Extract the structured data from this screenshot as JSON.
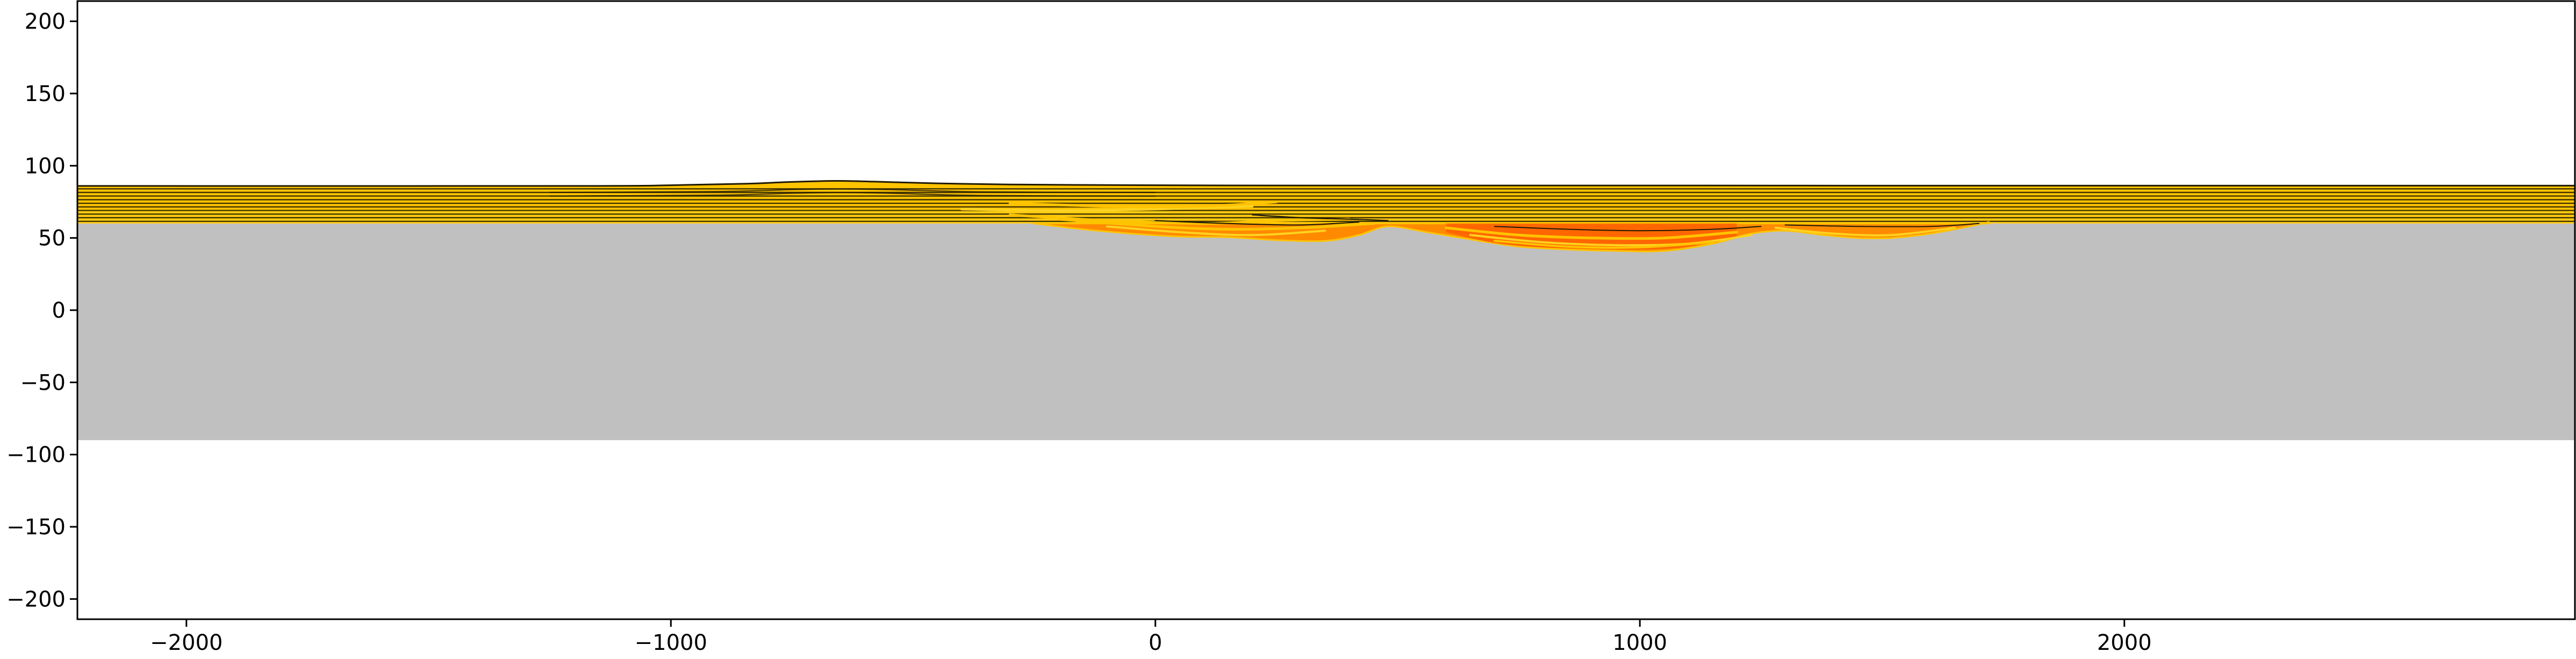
{
  "chart_data": {
    "type": "area",
    "title": "",
    "xlabel": "",
    "ylabel": "",
    "xlim": [
      -2225,
      2930
    ],
    "ylim": [
      -214,
      214
    ],
    "xticks": [
      -2000,
      -1000,
      0,
      1000,
      2000
    ],
    "xtick_labels": [
      "−2000",
      "−1000",
      "0",
      "1000",
      "2000"
    ],
    "yticks": [
      200,
      150,
      100,
      50,
      0,
      -50,
      -100,
      -150,
      -200
    ],
    "ytick_labels": [
      "200",
      "150",
      "100",
      "50",
      "0",
      "−50",
      "−100",
      "−150",
      "−200"
    ],
    "grid": false,
    "legend": "none",
    "colors": {
      "basement": "#c0c0c0",
      "sediment": "#ffc300",
      "sediment_light": "#ffd21f",
      "channel_fill": "#ff8a00",
      "channel_deep": "#ff5a00",
      "layer_line": "#1f1a00",
      "axes": "#000000"
    },
    "basement": {
      "top": 60,
      "bottom": -90
    },
    "sediment_top_profile": {
      "x": [
        -2225,
        -1200,
        -1000,
        -850,
        -750,
        -660,
        -580,
        -450,
        -300,
        -100,
        100,
        400,
        700,
        1000,
        1500,
        2000,
        2500,
        2930
      ],
      "y": [
        86,
        86,
        86.5,
        87.5,
        88.8,
        89.5,
        89,
        87.8,
        87,
        86.6,
        86.4,
        86.3,
        86.3,
        86.3,
        86.2,
        86.2,
        86.2,
        86.2
      ]
    },
    "layer_lines": [
      84,
      81.5,
      79,
      76.5,
      74,
      71.5,
      69,
      66.5,
      64,
      61.5
    ],
    "channel_fill_profile": {
      "x": [
        -250,
        -150,
        -50,
        50,
        150,
        250,
        350,
        420,
        480,
        560,
        650,
        750,
        850,
        950,
        1050,
        1150,
        1230,
        1300,
        1380,
        1450,
        1520,
        1600,
        1680,
        1720
      ],
      "y": [
        60,
        56,
        53,
        51,
        50.5,
        48.5,
        48,
        52,
        58,
        54,
        49,
        44,
        42,
        41,
        41,
        46,
        53,
        55,
        52,
        50,
        50,
        53,
        58,
        61
      ]
    },
    "channel_deep_profile": {
      "x": [
        600,
        700,
        800,
        900,
        1000,
        1100,
        1200
      ],
      "y": [
        54,
        46.5,
        43.5,
        42.5,
        42,
        44,
        51
      ]
    }
  }
}
